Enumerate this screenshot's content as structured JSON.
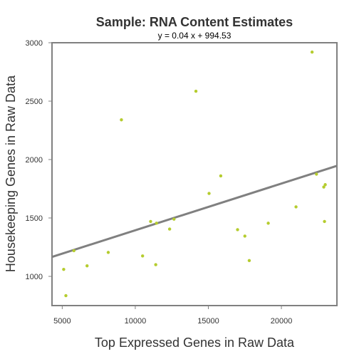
{
  "chart_data": {
    "type": "scatter",
    "title": "Sample: RNA Content Estimates",
    "subtitle": "y = 0.04 x + 994.53",
    "xlabel": "Top Expressed Genes in Raw Data",
    "ylabel": "Housekeeping Genes in Raw Data",
    "xlim": [
      4300,
      23800
    ],
    "ylim": [
      750,
      3000
    ],
    "xticks": [
      5000,
      10000,
      15000,
      20000
    ],
    "yticks": [
      1000,
      1500,
      2000,
      2500,
      3000
    ],
    "points": [
      {
        "x": 5100,
        "y": 1060
      },
      {
        "x": 5250,
        "y": 835
      },
      {
        "x": 5800,
        "y": 1220
      },
      {
        "x": 6700,
        "y": 1090
      },
      {
        "x": 8150,
        "y": 1205
      },
      {
        "x": 9050,
        "y": 2340
      },
      {
        "x": 10500,
        "y": 1175
      },
      {
        "x": 11050,
        "y": 1470
      },
      {
        "x": 11400,
        "y": 1100
      },
      {
        "x": 11450,
        "y": 1455
      },
      {
        "x": 12350,
        "y": 1405
      },
      {
        "x": 12650,
        "y": 1490
      },
      {
        "x": 14150,
        "y": 2585
      },
      {
        "x": 15050,
        "y": 1710
      },
      {
        "x": 15850,
        "y": 1860
      },
      {
        "x": 17000,
        "y": 1400
      },
      {
        "x": 17500,
        "y": 1345
      },
      {
        "x": 17800,
        "y": 1135
      },
      {
        "x": 19100,
        "y": 1455
      },
      {
        "x": 21000,
        "y": 1595
      },
      {
        "x": 22100,
        "y": 2920
      },
      {
        "x": 22400,
        "y": 1875
      },
      {
        "x": 22900,
        "y": 1765
      },
      {
        "x": 22950,
        "y": 1470
      },
      {
        "x": 23000,
        "y": 1785
      }
    ],
    "fit_line": {
      "slope": 0.04,
      "intercept": 994.53
    },
    "grid": false,
    "colors": {
      "points": "#b5cc2e",
      "fit_line": "#808080",
      "frame": "#808080"
    }
  }
}
